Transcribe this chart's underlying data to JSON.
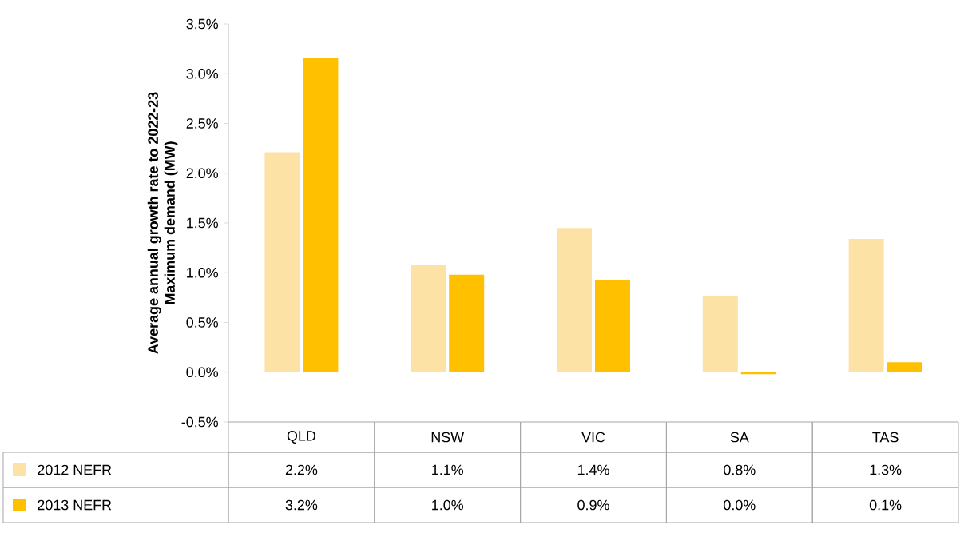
{
  "chart_data": {
    "type": "bar",
    "ylabel": "Average annual growth rate to 2022-23 Maximum demand (MW)",
    "categories": [
      "QLD",
      "NSW",
      "VIC",
      "SA",
      "TAS"
    ],
    "series": [
      {
        "name": "2012 NEFR",
        "color": "#FDE2A6",
        "values": [
          2.21,
          1.08,
          1.45,
          0.77,
          1.34
        ],
        "value_labels": [
          "2.2%",
          "1.1%",
          "1.4%",
          "0.8%",
          "1.3%"
        ]
      },
      {
        "name": "2013 NEFR",
        "color": "#FFC000",
        "values": [
          3.16,
          0.98,
          0.93,
          -0.02,
          0.1
        ],
        "value_labels": [
          "3.2%",
          "1.0%",
          "0.9%",
          "0.0%",
          "0.1%"
        ]
      }
    ],
    "ylim": [
      -0.5,
      3.5
    ],
    "yticks": [
      {
        "value": -0.5,
        "label": "-0.5%"
      },
      {
        "value": 0.0,
        "label": "0.0%"
      },
      {
        "value": 0.5,
        "label": "0.5%"
      },
      {
        "value": 1.0,
        "label": "1.0%"
      },
      {
        "value": 1.5,
        "label": "1.5%"
      },
      {
        "value": 2.0,
        "label": "2.0%"
      },
      {
        "value": 2.5,
        "label": "2.5%"
      },
      {
        "value": 3.0,
        "label": "3.0%"
      },
      {
        "value": 3.5,
        "label": "3.5%"
      }
    ],
    "legend": "bottom",
    "grid": false
  }
}
